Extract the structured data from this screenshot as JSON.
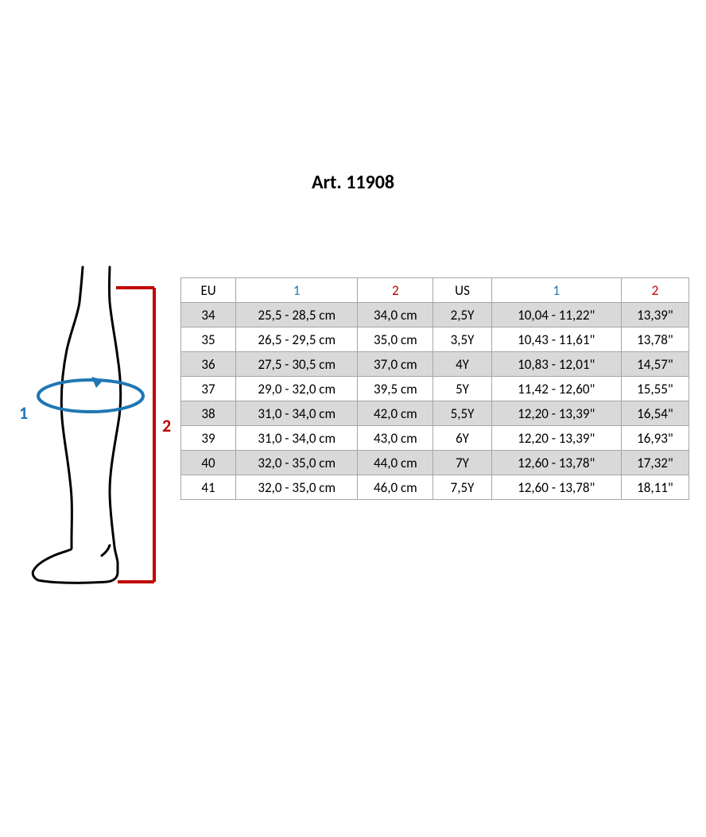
{
  "title": "Art. 11908",
  "diagram": {
    "label1": "1",
    "label2": "2",
    "leg_stroke": "#000000",
    "leg_stroke_width": 3,
    "circumference_color": "#1f77b4",
    "height_color": "#c00000"
  },
  "table": {
    "type": "table",
    "border_color": "#a6a6a6",
    "shade_color": "#d9d9d9",
    "header_blue": "#1f77b4",
    "header_red": "#c00000",
    "font_size": 17,
    "columns": [
      {
        "key": "eu",
        "label": "EU",
        "class": ""
      },
      {
        "key": "c1",
        "label": "1",
        "class": "hdr-blue"
      },
      {
        "key": "h2",
        "label": "2",
        "class": "hdr-red"
      },
      {
        "key": "us",
        "label": "US",
        "class": ""
      },
      {
        "key": "c1i",
        "label": "1",
        "class": "hdr-blue"
      },
      {
        "key": "h2i",
        "label": "2",
        "class": "hdr-red"
      }
    ],
    "col_widths": [
      "col-eu",
      "col-1",
      "col-2",
      "col-us",
      "col-1b",
      "col-2b"
    ],
    "rows": [
      {
        "shade": true,
        "cells": [
          "34",
          "25,5 - 28,5 cm",
          "34,0 cm",
          "2,5Y",
          "10,04 - 11,22\"",
          "13,39\""
        ]
      },
      {
        "shade": false,
        "cells": [
          "35",
          "26,5 - 29,5 cm",
          "35,0 cm",
          "3,5Y",
          "10,43 - 11,61\"",
          "13,78\""
        ]
      },
      {
        "shade": true,
        "cells": [
          "36",
          "27,5 - 30,5 cm",
          "37,0 cm",
          "4Y",
          "10,83 - 12,01\"",
          "14,57\""
        ]
      },
      {
        "shade": false,
        "cells": [
          "37",
          "29,0 - 32,0 cm",
          "39,5 cm",
          "5Y",
          "11,42 - 12,60\"",
          "15,55\""
        ]
      },
      {
        "shade": true,
        "cells": [
          "38",
          "31,0 - 34,0 cm",
          "42,0 cm",
          "5,5Y",
          "12,20 - 13,39\"",
          "16,54\""
        ]
      },
      {
        "shade": false,
        "cells": [
          "39",
          "31,0 - 34,0 cm",
          "43,0 cm",
          "6Y",
          "12,20 - 13,39\"",
          "16,93\""
        ]
      },
      {
        "shade": true,
        "cells": [
          "40",
          "32,0 - 35,0 cm",
          "44,0 cm",
          "7Y",
          "12,60 - 13,78\"",
          "17,32\""
        ]
      },
      {
        "shade": false,
        "cells": [
          "41",
          "32,0 - 35,0 cm",
          "46,0 cm",
          "7,5Y",
          "12,60 - 13,78\"",
          "18,11\""
        ]
      }
    ]
  }
}
